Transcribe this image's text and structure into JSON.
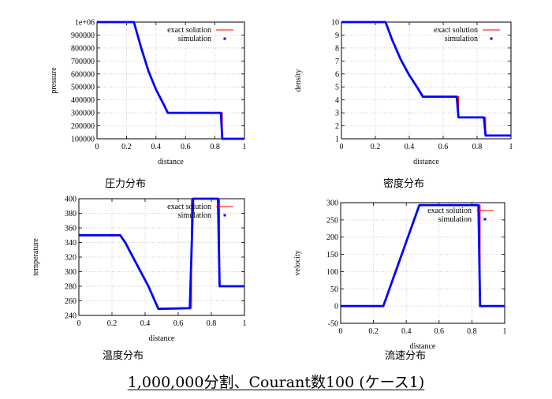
{
  "chart_data": [
    {
      "type": "line",
      "xlabel": "distance",
      "ylabel": "pressure",
      "xlim": [
        0,
        1
      ],
      "ylim": [
        100000,
        1000000
      ],
      "xticks": [
        "0",
        "0.2",
        "0.4",
        "0.6",
        "0.8",
        "1"
      ],
      "yticks": [
        "100000",
        "200000",
        "300000",
        "400000",
        "500000",
        "600000",
        "700000",
        "800000",
        "900000",
        "1e+06"
      ],
      "grid": true,
      "legend": "top-right",
      "caption": "圧力分布",
      "series": [
        {
          "name": "exact solution",
          "color": "#ff0000",
          "x": [
            0,
            0.25,
            0.3,
            0.35,
            0.4,
            0.45,
            0.48,
            0.85,
            0.85,
            1.0
          ],
          "y": [
            1000000,
            1000000,
            800000,
            620000,
            480000,
            370000,
            300000,
            300000,
            100000,
            100000
          ]
        },
        {
          "name": "simulation",
          "color": "#0000ff",
          "x": [
            0,
            0.25,
            0.3,
            0.35,
            0.4,
            0.45,
            0.48,
            0.84,
            0.85,
            1.0
          ],
          "y": [
            1000000,
            1000000,
            800000,
            620000,
            480000,
            370000,
            300000,
            300000,
            100000,
            100000
          ]
        }
      ]
    },
    {
      "type": "line",
      "xlabel": "distance",
      "ylabel": "density",
      "xlim": [
        0,
        1
      ],
      "ylim": [
        1,
        10
      ],
      "xticks": [
        "0",
        "0.2",
        "0.4",
        "0.6",
        "0.8",
        "1"
      ],
      "yticks": [
        "1",
        "2",
        "3",
        "4",
        "5",
        "6",
        "7",
        "8",
        "9",
        "10"
      ],
      "grid": true,
      "legend": "top-right",
      "caption": "密度分布",
      "series": [
        {
          "name": "exact solution",
          "color": "#ff0000",
          "x": [
            0,
            0.26,
            0.3,
            0.35,
            0.4,
            0.45,
            0.48,
            0.69,
            0.69,
            0.85,
            0.85,
            1.0
          ],
          "y": [
            10,
            10,
            8.6,
            7.1,
            5.9,
            4.9,
            4.25,
            4.25,
            2.65,
            2.65,
            1.25,
            1.25
          ]
        },
        {
          "name": "simulation",
          "color": "#0000ff",
          "x": [
            0,
            0.26,
            0.3,
            0.35,
            0.4,
            0.45,
            0.48,
            0.68,
            0.69,
            0.84,
            0.85,
            1.0
          ],
          "y": [
            10,
            10,
            8.6,
            7.1,
            5.9,
            4.9,
            4.25,
            4.25,
            2.65,
            2.65,
            1.25,
            1.25
          ]
        }
      ]
    },
    {
      "type": "line",
      "xlabel": "distance",
      "ylabel": "temperature",
      "xlim": [
        0,
        1
      ],
      "ylim": [
        240,
        400
      ],
      "xticks": [
        "0",
        "0.2",
        "0.4",
        "0.6",
        "0.8",
        "1"
      ],
      "yticks": [
        "240",
        "260",
        "280",
        "300",
        "320",
        "340",
        "360",
        "380",
        "400"
      ],
      "grid": true,
      "legend": "top-right",
      "caption": "温度分布",
      "series": [
        {
          "name": "exact solution",
          "color": "#ff0000",
          "x": [
            0,
            0.25,
            0.28,
            0.35,
            0.42,
            0.48,
            0.68,
            0.68,
            0.85,
            0.85,
            1.0
          ],
          "y": [
            350,
            350,
            340,
            310,
            280,
            250,
            250,
            400,
            400,
            280,
            280
          ]
        },
        {
          "name": "simulation",
          "color": "#0000ff",
          "x": [
            0,
            0.25,
            0.28,
            0.35,
            0.42,
            0.48,
            0.67,
            0.69,
            0.84,
            0.85,
            1.0
          ],
          "y": [
            350,
            350,
            340,
            310,
            280,
            249,
            250,
            400,
            400,
            280,
            280
          ]
        }
      ]
    },
    {
      "type": "line",
      "xlabel": "distance",
      "ylabel": "velocity",
      "xlim": [
        0,
        1
      ],
      "ylim": [
        -50,
        300
      ],
      "xticks": [
        "0",
        "0.2",
        "0.4",
        "0.6",
        "0.8",
        "1"
      ],
      "yticks": [
        "-50",
        "0",
        "50",
        "100",
        "150",
        "200",
        "250",
        "300"
      ],
      "grid": true,
      "legend": "top-right",
      "caption": "流速分布",
      "series": [
        {
          "name": "exact solution",
          "color": "#ff0000",
          "x": [
            0,
            0.26,
            0.48,
            0.85,
            0.85,
            1.0
          ],
          "y": [
            0,
            0,
            293,
            293,
            0,
            0
          ]
        },
        {
          "name": "simulation",
          "color": "#0000ff",
          "x": [
            0,
            0.26,
            0.48,
            0.84,
            0.85,
            1.0
          ],
          "y": [
            0,
            0,
            293,
            293,
            0,
            0
          ]
        }
      ]
    }
  ],
  "footer_title": "1,000,000分割、Courant数100 (ケース1)"
}
